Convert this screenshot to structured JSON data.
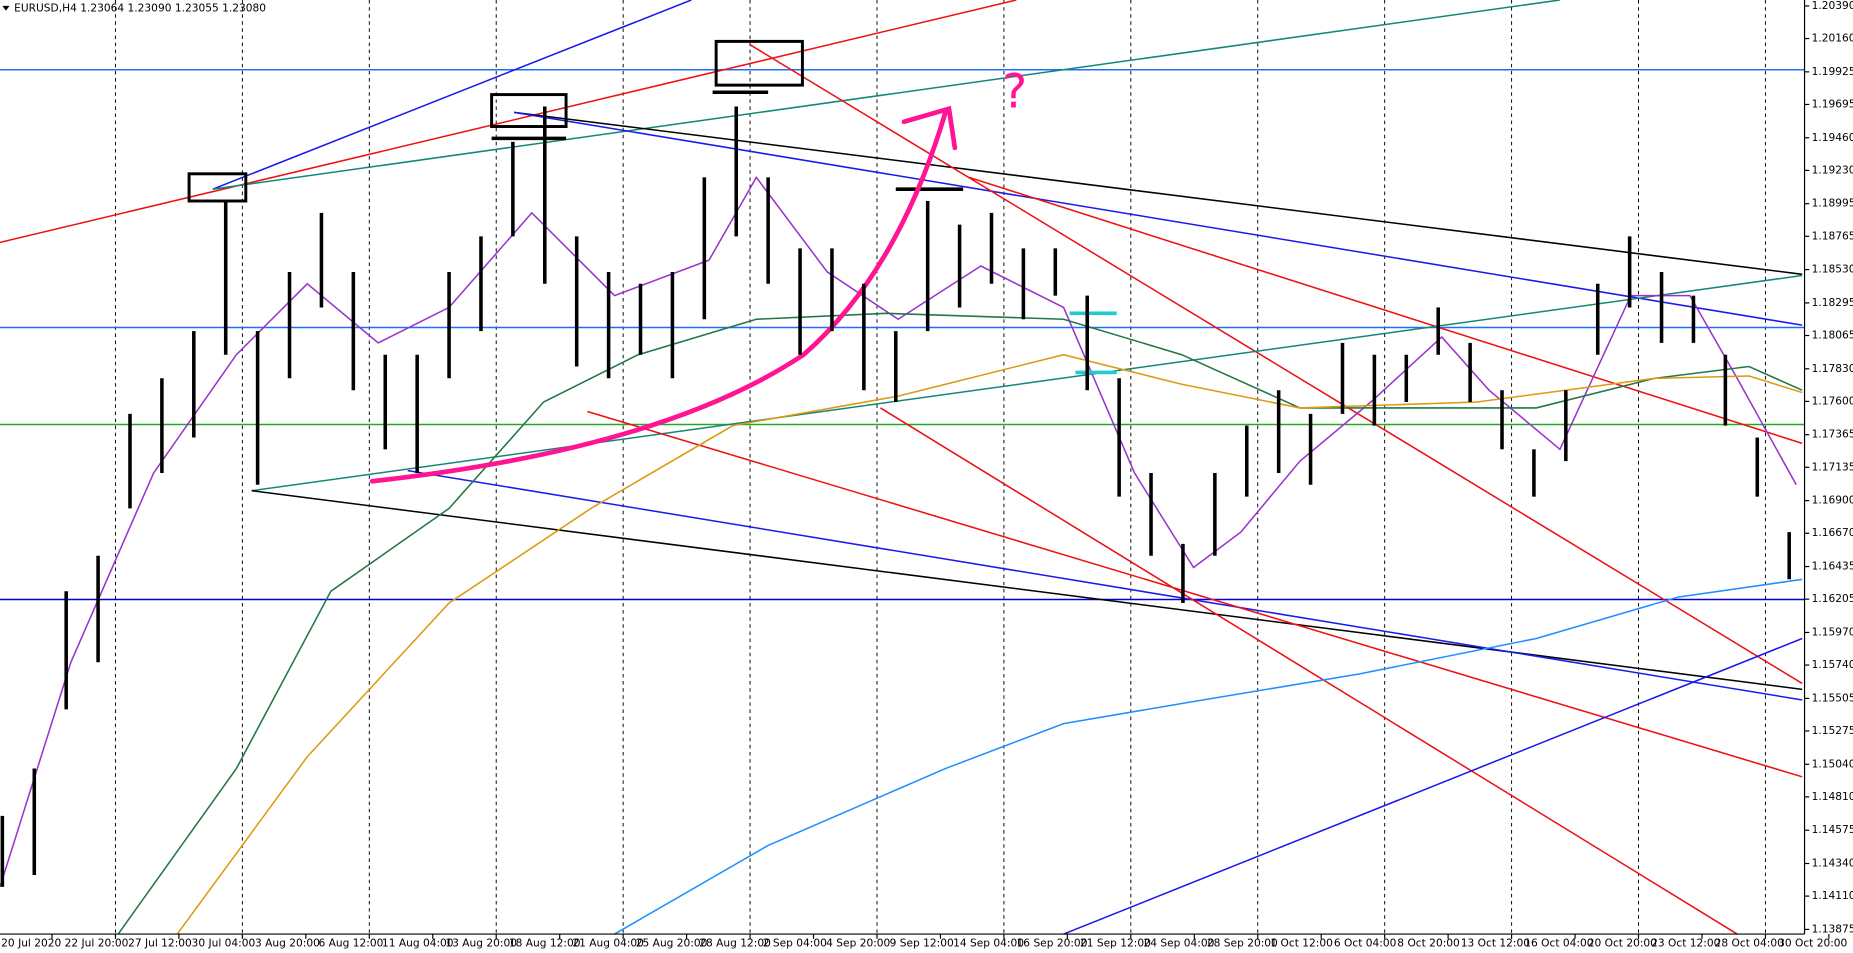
{
  "chart_data": {
    "type": "range_bar",
    "title": "EURUSD,H4  1.23064 1.23090 1.23055 1.23080",
    "annotation": "?",
    "color": "#000000",
    "ylim": [
      1.13842,
      1.20432
    ],
    "yticks": [
      {
        "value": 1.2039,
        "label": "1.20390"
      },
      {
        "value": 1.2016,
        "label": "1.20160"
      },
      1.19925,
      1.19695,
      {
        "value": 1.1946,
        "label": "1.19460"
      },
      {
        "value": 1.1923,
        "label": "1.19230"
      },
      1.18995,
      1.18765,
      {
        "value": 1.1853,
        "label": "1.18530"
      },
      1.18295,
      1.18065,
      {
        "value": 1.1783,
        "label": "1.17830"
      },
      {
        "value": 1.176,
        "label": "1.17600"
      },
      1.17365,
      1.17135,
      {
        "value": 1.169,
        "label": "1.16900"
      },
      {
        "value": 1.1667,
        "label": "1.16670"
      },
      1.16435,
      1.16205,
      {
        "value": 1.1597,
        "label": "1.15970"
      },
      {
        "value": 1.1574,
        "label": "1.15740"
      },
      1.15505,
      1.15275,
      {
        "value": 1.1504,
        "label": "1.15040"
      },
      {
        "value": 1.1481,
        "label": "1.14810"
      },
      1.14575,
      {
        "value": 1.1434,
        "label": "1.14340"
      },
      {
        "value": 1.1411,
        "label": "1.14110"
      },
      1.13875
    ],
    "x_labels": [
      "20 Jul 2020",
      "22 Jul 20:00",
      "27 Jul 12:00",
      "30 Jul 04:00",
      "3 Aug 20:00",
      "6 Aug 12:00",
      "11 Aug 04:00",
      "13 Aug 20:00",
      "18 Aug 12:00",
      "21 Aug 04:00",
      "25 Aug 20:00",
      "28 Aug 12:00",
      "2 Sep 04:00",
      "4 Sep 20:00",
      "9 Sep 12:00",
      "14 Sep 04:00",
      "16 Sep 20:00",
      "21 Sep 12:00",
      "24 Sep 04:00",
      "28 Sep 20:00",
      "1 Oct 12:00",
      "6 Oct 04:00",
      "8 Oct 20:00",
      "13 Oct 12:00",
      "16 Oct 04:00",
      "20 Oct 20:00",
      "23 Oct 12:00",
      "28 Oct 04:00",
      "30 Oct 20:00"
    ],
    "high": [
      1.14676,
      1.1501,
      1.16261,
      1.16511,
      1.17512,
      1.17763,
      1.18096,
      1.19014,
      1.18096,
      1.18513,
      1.1893,
      1.18513,
      1.17929,
      1.17929,
      1.18513,
      1.18764,
      1.19431,
      1.19681,
      1.18764,
      1.18513,
      1.1843,
      1.18513,
      1.19181,
      1.19681,
      1.19181,
      1.1868,
      1.1868,
      1.1843,
      1.18096,
      1.19014,
      1.18847,
      1.1893,
      1.1868,
      1.1868,
      1.18346,
      1.17763,
      1.17095,
      1.16595,
      1.17095,
      1.17429,
      1.17679,
      1.17512,
      1.18013,
      1.17929,
      1.17929,
      1.18263,
      1.18013,
      1.17679,
      1.17262,
      1.17679,
      1.1843,
      1.18764,
      1.18513,
      1.18346,
      1.17929,
      1.17345,
      1.16678
    ],
    "low": [
      1.14175,
      1.14259,
      1.15427,
      1.1576,
      1.16845,
      1.17095,
      1.17345,
      1.17929,
      1.17012,
      1.17763,
      1.18263,
      1.17679,
      1.17262,
      1.17095,
      1.17763,
      1.18096,
      1.18764,
      1.1843,
      1.17846,
      1.17763,
      1.17929,
      1.17763,
      1.1818,
      1.18764,
      1.1843,
      1.17929,
      1.18096,
      1.17679,
      1.17596,
      1.18096,
      1.18263,
      1.1843,
      1.1818,
      1.18346,
      1.17679,
      1.16928,
      1.16511,
      1.16178,
      1.16511,
      1.16928,
      1.17095,
      1.17012,
      1.17512,
      1.17429,
      1.17596,
      1.17929,
      1.17596,
      1.17262,
      1.16928,
      1.17179,
      1.17929,
      1.18263,
      1.18013,
      1.18013,
      1.17429,
      1.16928,
      1.16345
    ]
  }
}
